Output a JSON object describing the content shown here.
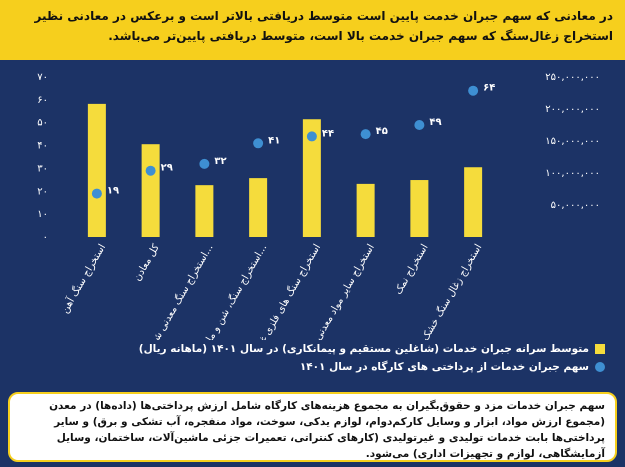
{
  "header": {
    "title": "در معادنی که سهم جبران خدمت پایین است متوسط دریافتی بالاتر است و برعکس در معادنی نظیر استخراج زغال‌سنگ که سهم جبران خدمت بالا است، متوسط دریافتی پایین‌تر می‌باشد."
  },
  "chart_data": {
    "type": "bar-dot",
    "categories": [
      "استخراج سنگ آهن",
      "کل معادن",
      "استخراج سنگ معدنی شیمیایی و...",
      "استخراج سنگ، شن و ماسه و...",
      "استخراج سنگ های فلزی غیر آهنی",
      "استخراج سایر مواد معدنی",
      "استخراج نمک",
      "استخراج زغال سنگ خشک"
    ],
    "series": [
      {
        "name": "متوسط سرانه جبران خدمات (شاغلین مستقیم و پیمانکاری) در سال ۱۴۰۱ (ماهانه ریال)",
        "color": "#f5dc3c",
        "axis": "y2",
        "values": [
          208000000,
          145000000,
          81000000,
          92000000,
          184000000,
          83000000,
          89000000,
          109000000
        ]
      },
      {
        "name": "سهم جبران خدمات از پرداختی های کارگاه در سال ۱۴۰۱",
        "color": "#3e8fd2",
        "axis": "y",
        "values": [
          19,
          29,
          32,
          41,
          44,
          45,
          49,
          64
        ],
        "value_labels": [
          "۱۹",
          "۲۹",
          "۳۲",
          "۴۱",
          "۴۴",
          "۴۵",
          "۴۹",
          "۶۴"
        ]
      }
    ],
    "ylim": [
      0,
      70
    ],
    "yticks": [
      {
        "value": 0,
        "label": "۰"
      },
      {
        "value": 10,
        "label": "۱۰"
      },
      {
        "value": 20,
        "label": "۲۰"
      },
      {
        "value": 30,
        "label": "۳۰"
      },
      {
        "value": 40,
        "label": "۴۰"
      },
      {
        "value": 50,
        "label": "۵۰"
      },
      {
        "value": 60,
        "label": "۶۰"
      },
      {
        "value": 70,
        "label": "۷۰"
      }
    ],
    "y2lim": [
      0,
      250000000
    ],
    "y2ticks": [
      {
        "value": 50000000,
        "label": "۵۰,۰۰۰,۰۰۰"
      },
      {
        "value": 100000000,
        "label": "۱۰۰,۰۰۰,۰۰۰"
      },
      {
        "value": 150000000,
        "label": "۱۵۰,۰۰۰,۰۰۰"
      },
      {
        "value": 200000000,
        "label": "۲۰۰,۰۰۰,۰۰۰"
      },
      {
        "value": 250000000,
        "label": "۲۵۰,۰۰۰,۰۰۰"
      }
    ]
  },
  "note": {
    "text": "سهم جبران خدمات مزد و حقوق‌بگیران به مجموع هزینه‌های کارگاه شامل ارزش پرداختی‌ها (داده‌ها) در معدن (مجموع ارزش مواد، ابزار و وسایل کارکم‌دوام، لوازم یدکی، سوخت، مواد منفجره، آب تشکی و برق) و سایر پرداختی‌ها بابت خدمات تولیدی و غیرتولیدی (کارهای کنتراتی، تعمیرات جزئی ماشین‌آلات، ساختمان، وسایل آزمایشگاهی، لوازم و تجهیزات اداری) می‌شود."
  }
}
